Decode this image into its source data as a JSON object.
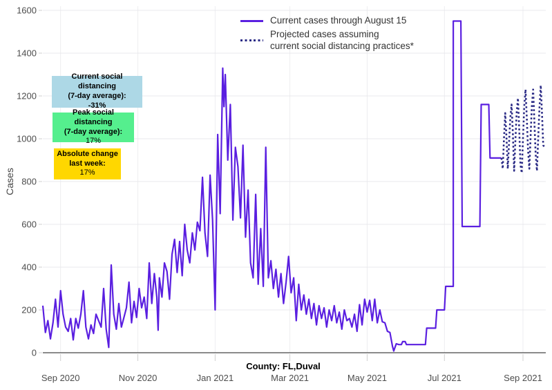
{
  "legend": {
    "items": [
      {
        "label": "Current cases through August 15",
        "style": "solid",
        "color": "#5A1FE0"
      },
      {
        "lines": [
          "Projected cases assuming",
          "current social distancing practices*"
        ],
        "style": "dotted",
        "color": "#2A2A85"
      }
    ]
  },
  "annotations": [
    {
      "bg": "#ADD8E6",
      "lines": [
        "Current social distancing",
        "(7-day average):",
        "-31%"
      ],
      "bold": [
        true,
        true,
        true
      ]
    },
    {
      "bg": "#55EF8E",
      "lines": [
        "Peak social distancing",
        "(7-day average):",
        "17%"
      ],
      "bold": [
        true,
        true,
        false
      ]
    },
    {
      "bg": "#FFD700",
      "lines": [
        "Absolute change",
        "last week:",
        "17%"
      ],
      "bold": [
        true,
        true,
        false
      ]
    }
  ],
  "axes": {
    "ylabel": "Cases",
    "xlabel": "County: FL,Duval",
    "yticks": [
      0,
      200,
      400,
      600,
      800,
      1000,
      1200,
      1400,
      1600
    ],
    "xticks": [
      {
        "date": "2020-09-01",
        "label": "Sep 2020"
      },
      {
        "date": "2020-11-01",
        "label": "Nov 2020"
      },
      {
        "date": "2021-01-01",
        "label": "Jan 2021"
      },
      {
        "date": "2021-03-01",
        "label": "Mar 2021"
      },
      {
        "date": "2021-05-01",
        "label": "May 2021"
      },
      {
        "date": "2021-07-01",
        "label": "Jul 2021"
      },
      {
        "date": "2021-09-01",
        "label": "Sep 2021"
      }
    ],
    "x_domain": [
      "2020-08-18",
      "2021-09-19"
    ]
  },
  "chart_data": {
    "type": "line",
    "title": "",
    "xlabel": "County: FL,Duval",
    "ylabel": "Cases",
    "ylim": [
      0,
      1600
    ],
    "grid": true,
    "legend_position": "top-center",
    "series": [
      {
        "name": "Current cases through August 15",
        "color": "#5A1FE0",
        "dash": "solid",
        "points": [
          [
            "2020-08-18",
            220
          ],
          [
            "2020-08-20",
            95
          ],
          [
            "2020-08-22",
            150
          ],
          [
            "2020-08-24",
            65
          ],
          [
            "2020-08-26",
            140
          ],
          [
            "2020-08-28",
            250
          ],
          [
            "2020-08-30",
            120
          ],
          [
            "2020-09-01",
            290
          ],
          [
            "2020-09-03",
            180
          ],
          [
            "2020-09-05",
            120
          ],
          [
            "2020-09-07",
            100
          ],
          [
            "2020-09-09",
            160
          ],
          [
            "2020-09-11",
            60
          ],
          [
            "2020-09-13",
            160
          ],
          [
            "2020-09-15",
            115
          ],
          [
            "2020-09-17",
            180
          ],
          [
            "2020-09-19",
            290
          ],
          [
            "2020-09-21",
            120
          ],
          [
            "2020-09-23",
            65
          ],
          [
            "2020-09-25",
            130
          ],
          [
            "2020-09-27",
            90
          ],
          [
            "2020-09-29",
            180
          ],
          [
            "2020-10-01",
            150
          ],
          [
            "2020-10-03",
            120
          ],
          [
            "2020-10-05",
            300
          ],
          [
            "2020-10-07",
            110
          ],
          [
            "2020-10-09",
            25
          ],
          [
            "2020-10-11",
            410
          ],
          [
            "2020-10-13",
            180
          ],
          [
            "2020-10-15",
            110
          ],
          [
            "2020-10-17",
            230
          ],
          [
            "2020-10-19",
            120
          ],
          [
            "2020-10-21",
            165
          ],
          [
            "2020-10-23",
            210
          ],
          [
            "2020-10-25",
            330
          ],
          [
            "2020-10-27",
            140
          ],
          [
            "2020-10-29",
            240
          ],
          [
            "2020-10-31",
            165
          ],
          [
            "2020-11-02",
            300
          ],
          [
            "2020-11-04",
            210
          ],
          [
            "2020-11-06",
            260
          ],
          [
            "2020-11-08",
            160
          ],
          [
            "2020-11-10",
            420
          ],
          [
            "2020-11-12",
            230
          ],
          [
            "2020-11-14",
            370
          ],
          [
            "2020-11-16",
            260
          ],
          [
            "2020-11-17",
            105
          ],
          [
            "2020-11-18",
            350
          ],
          [
            "2020-11-20",
            260
          ],
          [
            "2020-11-22",
            420
          ],
          [
            "2020-11-24",
            380
          ],
          [
            "2020-11-26",
            250
          ],
          [
            "2020-11-28",
            460
          ],
          [
            "2020-11-30",
            530
          ],
          [
            "2020-12-02",
            375
          ],
          [
            "2020-12-04",
            520
          ],
          [
            "2020-12-06",
            360
          ],
          [
            "2020-12-08",
            600
          ],
          [
            "2020-12-10",
            480
          ],
          [
            "2020-12-12",
            420
          ],
          [
            "2020-12-14",
            560
          ],
          [
            "2020-12-16",
            480
          ],
          [
            "2020-12-18",
            610
          ],
          [
            "2020-12-20",
            570
          ],
          [
            "2020-12-22",
            820
          ],
          [
            "2020-12-24",
            560
          ],
          [
            "2020-12-26",
            450
          ],
          [
            "2020-12-28",
            830
          ],
          [
            "2020-12-30",
            620
          ],
          [
            "2021-01-01",
            200
          ],
          [
            "2021-01-03",
            1020
          ],
          [
            "2021-01-05",
            650
          ],
          [
            "2021-01-07",
            1330
          ],
          [
            "2021-01-08",
            1150
          ],
          [
            "2021-01-09",
            1300
          ],
          [
            "2021-01-11",
            900
          ],
          [
            "2021-01-13",
            1160
          ],
          [
            "2021-01-15",
            620
          ],
          [
            "2021-01-17",
            960
          ],
          [
            "2021-01-19",
            870
          ],
          [
            "2021-01-21",
            630
          ],
          [
            "2021-01-23",
            970
          ],
          [
            "2021-01-25",
            540
          ],
          [
            "2021-01-27",
            760
          ],
          [
            "2021-01-29",
            420
          ],
          [
            "2021-01-31",
            350
          ],
          [
            "2021-02-02",
            740
          ],
          [
            "2021-02-04",
            320
          ],
          [
            "2021-02-06",
            580
          ],
          [
            "2021-02-08",
            310
          ],
          [
            "2021-02-10",
            960
          ],
          [
            "2021-02-12",
            350
          ],
          [
            "2021-02-14",
            430
          ],
          [
            "2021-02-16",
            300
          ],
          [
            "2021-02-18",
            390
          ],
          [
            "2021-02-20",
            260
          ],
          [
            "2021-02-22",
            370
          ],
          [
            "2021-02-24",
            230
          ],
          [
            "2021-02-26",
            330
          ],
          [
            "2021-02-28",
            450
          ],
          [
            "2021-03-02",
            280
          ],
          [
            "2021-03-04",
            350
          ],
          [
            "2021-03-06",
            150
          ],
          [
            "2021-03-08",
            320
          ],
          [
            "2021-03-10",
            200
          ],
          [
            "2021-03-12",
            270
          ],
          [
            "2021-03-14",
            180
          ],
          [
            "2021-03-16",
            250
          ],
          [
            "2021-03-18",
            160
          ],
          [
            "2021-03-20",
            230
          ],
          [
            "2021-03-22",
            130
          ],
          [
            "2021-03-24",
            220
          ],
          [
            "2021-03-26",
            160
          ],
          [
            "2021-03-28",
            210
          ],
          [
            "2021-03-30",
            120
          ],
          [
            "2021-04-01",
            200
          ],
          [
            "2021-04-03",
            150
          ],
          [
            "2021-04-05",
            220
          ],
          [
            "2021-04-07",
            140
          ],
          [
            "2021-04-09",
            190
          ],
          [
            "2021-04-11",
            110
          ],
          [
            "2021-04-13",
            200
          ],
          [
            "2021-04-15",
            150
          ],
          [
            "2021-04-17",
            160
          ],
          [
            "2021-04-19",
            120
          ],
          [
            "2021-04-21",
            180
          ],
          [
            "2021-04-23",
            100
          ],
          [
            "2021-04-25",
            225
          ],
          [
            "2021-04-27",
            130
          ],
          [
            "2021-04-29",
            250
          ],
          [
            "2021-05-01",
            190
          ],
          [
            "2021-05-03",
            245
          ],
          [
            "2021-05-05",
            150
          ],
          [
            "2021-05-07",
            250
          ],
          [
            "2021-05-09",
            140
          ],
          [
            "2021-05-11",
            200
          ],
          [
            "2021-05-13",
            145
          ],
          [
            "2021-05-15",
            140
          ],
          [
            "2021-05-17",
            100
          ],
          [
            "2021-05-19",
            95
          ],
          [
            "2021-05-21",
            30
          ],
          [
            "2021-05-22",
            8
          ],
          [
            "2021-05-24",
            42
          ],
          [
            "2021-05-26",
            38
          ],
          [
            "2021-05-28",
            38
          ],
          [
            "2021-05-29",
            52
          ],
          [
            "2021-05-31",
            52
          ],
          [
            "2021-06-01",
            38
          ],
          [
            "2021-06-05",
            38
          ],
          [
            "2021-06-09",
            38
          ],
          [
            "2021-06-13",
            38
          ],
          [
            "2021-06-16",
            38
          ],
          [
            "2021-06-17",
            115
          ],
          [
            "2021-06-20",
            115
          ],
          [
            "2021-06-24",
            115
          ],
          [
            "2021-06-25",
            200
          ],
          [
            "2021-06-28",
            200
          ],
          [
            "2021-07-01",
            200
          ],
          [
            "2021-07-02",
            310
          ],
          [
            "2021-07-05",
            310
          ],
          [
            "2021-07-08",
            310
          ],
          [
            "2021-07-08",
            1550
          ],
          [
            "2021-07-11",
            1550
          ],
          [
            "2021-07-14",
            1550
          ],
          [
            "2021-07-15",
            590
          ],
          [
            "2021-07-19",
            590
          ],
          [
            "2021-07-23",
            590
          ],
          [
            "2021-07-27",
            590
          ],
          [
            "2021-07-29",
            590
          ],
          [
            "2021-07-30",
            1160
          ],
          [
            "2021-08-02",
            1160
          ],
          [
            "2021-08-05",
            1160
          ],
          [
            "2021-08-06",
            910
          ],
          [
            "2021-08-09",
            910
          ],
          [
            "2021-08-12",
            910
          ],
          [
            "2021-08-15",
            910
          ]
        ]
      },
      {
        "name": "Projected cases assuming current social distancing practices*",
        "color": "#2A2A85",
        "dash": "dotted",
        "points": [
          [
            "2021-08-15",
            910
          ],
          [
            "2021-08-16",
            860
          ],
          [
            "2021-08-17",
            1000
          ],
          [
            "2021-08-18",
            1120
          ],
          [
            "2021-08-19",
            1000
          ],
          [
            "2021-08-20",
            860
          ],
          [
            "2021-08-21",
            980
          ],
          [
            "2021-08-22",
            1100
          ],
          [
            "2021-08-23",
            1160
          ],
          [
            "2021-08-24",
            1030
          ],
          [
            "2021-08-25",
            850
          ],
          [
            "2021-08-26",
            990
          ],
          [
            "2021-08-27",
            1120
          ],
          [
            "2021-08-28",
            1190
          ],
          [
            "2021-08-29",
            1050
          ],
          [
            "2021-08-30",
            880
          ],
          [
            "2021-08-31",
            840
          ],
          [
            "2021-09-01",
            1000
          ],
          [
            "2021-09-02",
            1150
          ],
          [
            "2021-09-03",
            1230
          ],
          [
            "2021-09-04",
            1100
          ],
          [
            "2021-09-05",
            950
          ],
          [
            "2021-09-06",
            860
          ],
          [
            "2021-09-07",
            1010
          ],
          [
            "2021-09-08",
            1150
          ],
          [
            "2021-09-09",
            1230
          ],
          [
            "2021-09-10",
            1080
          ],
          [
            "2021-09-11",
            930
          ],
          [
            "2021-09-12",
            850
          ],
          [
            "2021-09-13",
            1000
          ],
          [
            "2021-09-14",
            1140
          ],
          [
            "2021-09-15",
            1250
          ],
          [
            "2021-09-16",
            1120
          ],
          [
            "2021-09-17",
            970
          ],
          [
            "2021-09-18",
            960
          ]
        ]
      }
    ]
  }
}
